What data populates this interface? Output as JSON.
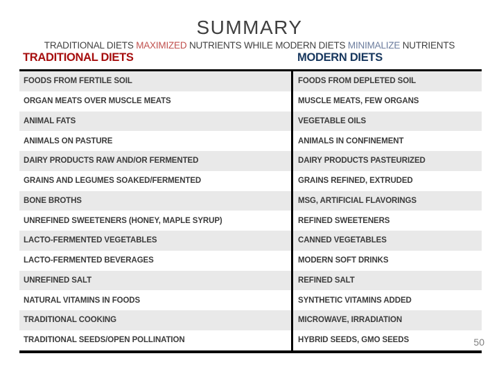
{
  "page": {
    "title": "SUMMARY",
    "page_number": "50"
  },
  "subtitle": {
    "pre": "TRADITIONAL DIETS ",
    "max_word": "MAXIMIZED",
    "mid": " NUTRIENTS WHILE MODERN DIETS ",
    "min_word": "MINIMALIZE",
    "post": " NUTRIENTS"
  },
  "columns": {
    "left_header": "TRADITIONAL DIETS",
    "right_header": "MODERN DIETS"
  },
  "colors": {
    "subtitle_red": "#C0504D",
    "subtitle_slate": "#6B7C9D",
    "header_red": "#A60E0E",
    "header_navy": "#17375E",
    "row_shade": "#E9E9E9",
    "body_text": "#3B3B3B",
    "border_black": "#000000",
    "page_number_gray": "#7F7F7F"
  },
  "table": {
    "rows": [
      {
        "left": "FOODS FROM FERTILE SOIL",
        "right": "FOODS FROM DEPLETED SOIL"
      },
      {
        "left": "ORGAN MEATS OVER MUSCLE MEATS",
        "right": "MUSCLE MEATS, FEW ORGANS"
      },
      {
        "left": "ANIMAL FATS",
        "right": "VEGETABLE OILS"
      },
      {
        "left": "ANIMALS ON PASTURE",
        "right": "ANIMALS IN CONFINEMENT"
      },
      {
        "left": "DAIRY PRODUCTS RAW AND/OR FERMENTED",
        "right": "DAIRY PRODUCTS PASTEURIZED"
      },
      {
        "left": "GRAINS AND LEGUMES SOAKED/FERMENTED",
        "right": "GRAINS REFINED, EXTRUDED"
      },
      {
        "left": "BONE BROTHS",
        "right": "MSG, ARTIFICIAL FLAVORINGS"
      },
      {
        "left": "UNREFINED SWEETENERS (HONEY, MAPLE SYRUP)",
        "right": "REFINED SWEETENERS"
      },
      {
        "left": "LACTO-FERMENTED VEGETABLES",
        "right": "CANNED VEGETABLES"
      },
      {
        "left": "LACTO-FERMENTED BEVERAGES",
        "right": "MODERN SOFT DRINKS"
      },
      {
        "left": "UNREFINED SALT",
        "right": "REFINED SALT"
      },
      {
        "left": "NATURAL VITAMINS IN FOODS",
        "right": "SYNTHETIC VITAMINS ADDED"
      },
      {
        "left": "TRADITIONAL COOKING",
        "right": "MICROWAVE, IRRADIATION"
      },
      {
        "left": "TRADITIONAL SEEDS/OPEN POLLINATION",
        "right": "HYBRID SEEDS, GMO SEEDS"
      }
    ]
  }
}
